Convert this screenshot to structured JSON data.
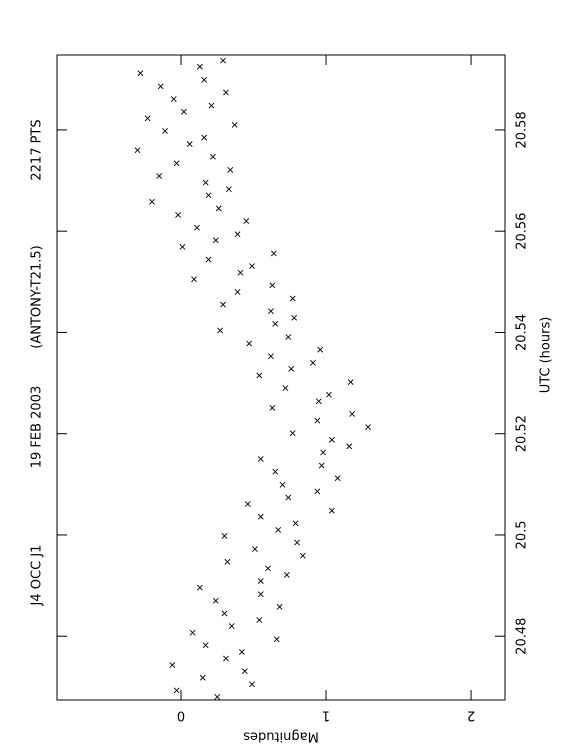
{
  "chart_data": {
    "type": "scatter",
    "annotations": [
      "J4 OCC J1",
      "19 FEB 2003",
      "(ANTONY-T21.5)",
      "2217 PTS"
    ],
    "xlabel": "UTC (hours)",
    "ylabel": "Magnitudes",
    "xlim": [
      20.4674,
      20.5948
    ],
    "xticks": [
      20.48,
      20.5,
      20.52,
      20.54,
      20.56,
      20.58
    ],
    "ylim": [
      -0.855,
      2.234
    ],
    "yticks": [
      0,
      1,
      2
    ],
    "color": "#000000",
    "x": [
      20.468,
      20.4693,
      20.4705,
      20.4718,
      20.4731,
      20.4743,
      20.4756,
      20.4769,
      20.4782,
      20.4794,
      20.4807,
      20.482,
      20.4832,
      20.4845,
      20.4858,
      20.487,
      20.4883,
      20.4896,
      20.4909,
      20.4921,
      20.4934,
      20.4947,
      20.4959,
      20.4972,
      20.4985,
      20.4998,
      20.501,
      20.5023,
      20.5036,
      20.5048,
      20.5061,
      20.5074,
      20.5086,
      20.5099,
      20.5112,
      20.5125,
      20.5137,
      20.515,
      20.5163,
      20.5175,
      20.5188,
      20.5201,
      20.5213,
      20.5226,
      20.5239,
      20.5251,
      20.5264,
      20.5277,
      20.529,
      20.5302,
      20.5315,
      20.5328,
      20.534,
      20.5353,
      20.5366,
      20.5378,
      20.5391,
      20.5404,
      20.5417,
      20.5429,
      20.5442,
      20.5455,
      20.5467,
      20.548,
      20.5493,
      20.5505,
      20.5518,
      20.5531,
      20.5544,
      20.5556,
      20.5569,
      20.5582,
      20.5594,
      20.5607,
      20.562,
      20.5632,
      20.5645,
      20.5658,
      20.5671,
      20.5683,
      20.5696,
      20.5709,
      20.5721,
      20.5734,
      20.5747,
      20.576,
      20.5772,
      20.5785,
      20.5798,
      20.581,
      20.5823,
      20.5836,
      20.5848,
      20.5861,
      20.5874,
      20.5886,
      20.5899,
      20.5912,
      20.5925,
      20.5937
    ],
    "values": [
      0.25,
      -0.03,
      0.49,
      0.15,
      0.44,
      -0.06,
      0.31,
      0.42,
      0.17,
      0.66,
      0.08,
      0.35,
      0.54,
      0.3,
      0.68,
      0.24,
      0.55,
      0.13,
      0.55,
      0.73,
      0.6,
      0.32,
      0.84,
      0.51,
      0.8,
      0.3,
      0.67,
      0.79,
      0.55,
      1.04,
      0.46,
      0.74,
      0.94,
      0.7,
      1.08,
      0.65,
      0.97,
      0.55,
      0.98,
      1.16,
      1.04,
      0.77,
      1.29,
      0.94,
      1.18,
      0.63,
      0.95,
      1.02,
      0.72,
      1.17,
      0.54,
      0.76,
      0.91,
      0.62,
      0.96,
      0.47,
      0.74,
      0.27,
      0.65,
      0.78,
      0.62,
      0.29,
      0.77,
      0.39,
      0.63,
      0.09,
      0.41,
      0.49,
      0.19,
      0.64,
      0.01,
      0.24,
      0.39,
      0.11,
      0.45,
      -0.02,
      0.26,
      -0.2,
      0.19,
      0.33,
      0.17,
      -0.15,
      0.34,
      -0.03,
      0.22,
      -0.3,
      0.06,
      0.16,
      -0.11,
      0.37,
      -0.23,
      0.02,
      0.21,
      -0.05,
      0.31,
      -0.14,
      0.16,
      -0.28,
      0.13,
      0.29
    ]
  }
}
